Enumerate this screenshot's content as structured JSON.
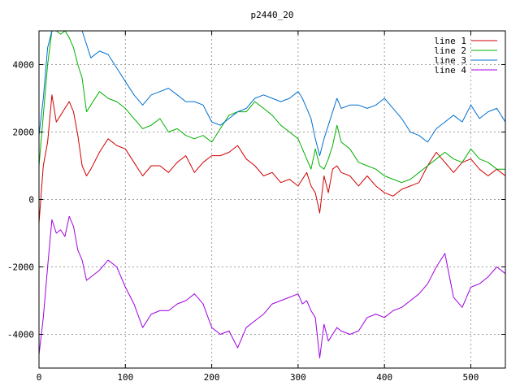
{
  "chart_data": {
    "type": "line",
    "title": "p2440_20",
    "xlabel": "",
    "ylabel": "",
    "xlim": [
      0,
      540
    ],
    "ylim": [
      -5000,
      5000
    ],
    "xticks": [
      0,
      100,
      200,
      300,
      400,
      500
    ],
    "yticks": [
      -4000,
      -2000,
      0,
      2000,
      4000
    ],
    "grid": true,
    "legend_position": "top-right",
    "series": [
      {
        "name": "line 1",
        "color": "#d00000",
        "x": [
          0,
          5,
          10,
          15,
          20,
          25,
          30,
          35,
          40,
          45,
          50,
          55,
          60,
          70,
          80,
          90,
          100,
          110,
          120,
          130,
          140,
          150,
          160,
          170,
          180,
          190,
          200,
          210,
          220,
          230,
          240,
          250,
          260,
          270,
          280,
          290,
          300,
          305,
          310,
          315,
          320,
          325,
          330,
          335,
          340,
          345,
          350,
          360,
          370,
          380,
          390,
          400,
          410,
          420,
          430,
          440,
          450,
          460,
          470,
          480,
          490,
          500,
          510,
          520,
          530,
          540
        ],
        "y": [
          -700,
          1000,
          1700,
          3100,
          2300,
          2500,
          2700,
          2900,
          2600,
          1900,
          1000,
          700,
          900,
          1400,
          1800,
          1600,
          1500,
          1100,
          700,
          1000,
          1000,
          800,
          1100,
          1300,
          800,
          1100,
          1300,
          1300,
          1400,
          1600,
          1200,
          1000,
          700,
          800,
          500,
          600,
          400,
          600,
          800,
          400,
          200,
          -400,
          700,
          200,
          900,
          1000,
          800,
          700,
          400,
          700,
          400,
          200,
          100,
          300,
          400,
          500,
          1000,
          1400,
          1100,
          800,
          1100,
          1200,
          900,
          700,
          900,
          700
        ]
      },
      {
        "name": "line 2",
        "color": "#00b000",
        "x": [
          0,
          5,
          10,
          15,
          20,
          25,
          30,
          35,
          40,
          45,
          50,
          55,
          60,
          70,
          80,
          90,
          100,
          110,
          120,
          130,
          140,
          150,
          160,
          170,
          180,
          190,
          200,
          210,
          220,
          230,
          240,
          250,
          260,
          270,
          280,
          290,
          300,
          305,
          310,
          315,
          320,
          325,
          330,
          335,
          340,
          345,
          350,
          360,
          370,
          380,
          390,
          400,
          410,
          420,
          430,
          440,
          450,
          460,
          470,
          480,
          490,
          500,
          510,
          520,
          530,
          540
        ],
        "y": [
          1000,
          2500,
          4000,
          5000,
          5000,
          4900,
          5000,
          4800,
          4500,
          4000,
          3600,
          2600,
          2800,
          3200,
          3000,
          2900,
          2700,
          2400,
          2100,
          2200,
          2400,
          2000,
          2100,
          1900,
          1800,
          1900,
          1700,
          2100,
          2500,
          2600,
          2600,
          2900,
          2700,
          2500,
          2200,
          2000,
          1800,
          1500,
          1200,
          900,
          1500,
          1000,
          900,
          1200,
          1600,
          2200,
          1700,
          1500,
          1100,
          1000,
          900,
          700,
          600,
          500,
          600,
          800,
          1000,
          1200,
          1400,
          1200,
          1100,
          1500,
          1200,
          1100,
          900,
          900
        ]
      },
      {
        "name": "line 3",
        "color": "#0070d0",
        "x": [
          0,
          5,
          10,
          15,
          20,
          25,
          30,
          35,
          40,
          45,
          50,
          55,
          60,
          70,
          80,
          90,
          100,
          110,
          120,
          130,
          140,
          150,
          160,
          170,
          180,
          190,
          200,
          210,
          220,
          230,
          240,
          250,
          260,
          270,
          280,
          290,
          300,
          305,
          310,
          315,
          320,
          325,
          330,
          335,
          340,
          345,
          350,
          360,
          370,
          380,
          390,
          400,
          410,
          420,
          430,
          440,
          450,
          460,
          470,
          480,
          490,
          500,
          510,
          520,
          530,
          540
        ],
        "y": [
          1900,
          3000,
          4500,
          5000,
          5000,
          5000,
          5000,
          5000,
          5000,
          5000,
          5000,
          4600,
          4200,
          4400,
          4300,
          3900,
          3500,
          3100,
          2800,
          3100,
          3200,
          3300,
          3100,
          2900,
          2900,
          2800,
          2300,
          2200,
          2400,
          2600,
          2700,
          3000,
          3100,
          3000,
          2900,
          3000,
          3200,
          3000,
          2700,
          2400,
          1800,
          1300,
          1800,
          2200,
          2600,
          3000,
          2700,
          2800,
          2800,
          2700,
          2800,
          3000,
          2700,
          2400,
          2000,
          1900,
          1700,
          2100,
          2300,
          2500,
          2300,
          2800,
          2400,
          2600,
          2700,
          2300
        ]
      },
      {
        "name": "line 4",
        "color": "#a000e0",
        "x": [
          0,
          5,
          10,
          15,
          20,
          25,
          30,
          35,
          40,
          45,
          50,
          55,
          60,
          70,
          80,
          90,
          100,
          110,
          120,
          130,
          140,
          150,
          160,
          170,
          180,
          190,
          200,
          210,
          220,
          230,
          240,
          250,
          260,
          270,
          280,
          290,
          300,
          305,
          310,
          315,
          320,
          325,
          330,
          335,
          340,
          345,
          350,
          360,
          370,
          380,
          390,
          400,
          410,
          420,
          430,
          440,
          450,
          460,
          470,
          480,
          490,
          500,
          510,
          520,
          530,
          540
        ],
        "y": [
          -4600,
          -3500,
          -2000,
          -600,
          -1000,
          -900,
          -1100,
          -500,
          -800,
          -1500,
          -1800,
          -2400,
          -2300,
          -2100,
          -1800,
          -2000,
          -2600,
          -3100,
          -3800,
          -3400,
          -3300,
          -3300,
          -3100,
          -3000,
          -2800,
          -3100,
          -3800,
          -4000,
          -3900,
          -4400,
          -3800,
          -3600,
          -3400,
          -3100,
          -3000,
          -2900,
          -2800,
          -3100,
          -3000,
          -3300,
          -3500,
          -4700,
          -3700,
          -4200,
          -4000,
          -3800,
          -3900,
          -4000,
          -3900,
          -3500,
          -3400,
          -3500,
          -3300,
          -3200,
          -3000,
          -2800,
          -2500,
          -2000,
          -1600,
          -2900,
          -3200,
          -2600,
          -2500,
          -2300,
          -2000,
          -2200
        ]
      }
    ]
  }
}
